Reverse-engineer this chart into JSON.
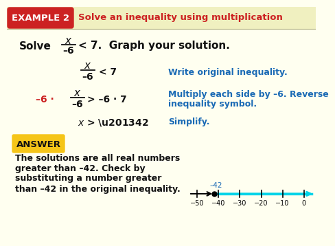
{
  "bg_color": "#fffff0",
  "header_bg": "#cc2222",
  "header_text": "EXAMPLE 2",
  "header_text_color": "#ffffff",
  "title_text": "Solve an inequality using multiplication",
  "title_color": "#cc2222",
  "answer_bg": "#f5c518",
  "answer_text": "ANSWER",
  "answer_body_lines": [
    "The solutions are all real numbers",
    "greater than –42. Check by",
    "substituting a number greater",
    "than –42 in the original inequality."
  ],
  "number_line_ticks": [
    -50,
    -40,
    -30,
    -20,
    -10,
    0
  ],
  "number_line_point": -42,
  "cyan_color": "#00d4e8",
  "dark_text": "#111111",
  "blue_text": "#1a6ab5",
  "red_text": "#cc2222",
  "step1_desc": "Write original inequality.",
  "step2_desc1": "Multiply each side by –6. Reverse",
  "step2_desc2": "inequality symbol.",
  "step3_desc": "Simplify."
}
